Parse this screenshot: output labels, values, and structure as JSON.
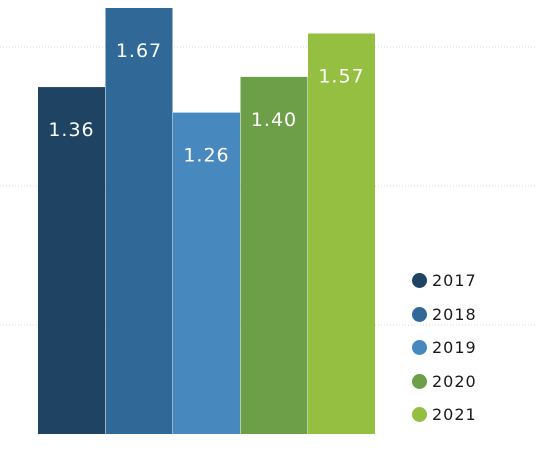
{
  "chart_data": {
    "type": "bar",
    "categories": [
      "2017",
      "2018",
      "2019",
      "2020",
      "2021"
    ],
    "values": [
      1.36,
      1.67,
      1.26,
      1.4,
      1.57
    ],
    "value_labels": [
      "1.36",
      "1.67",
      "1.26",
      "1.40",
      "1.57"
    ],
    "colors": [
      "#1f4363",
      "#306897",
      "#4788bf",
      "#6d9e48",
      "#94bf40"
    ],
    "ylim": [
      0,
      1.67
    ],
    "grid": true,
    "legend": {
      "position": "right",
      "entries": [
        "2017",
        "2018",
        "2019",
        "2020",
        "2021"
      ]
    }
  }
}
